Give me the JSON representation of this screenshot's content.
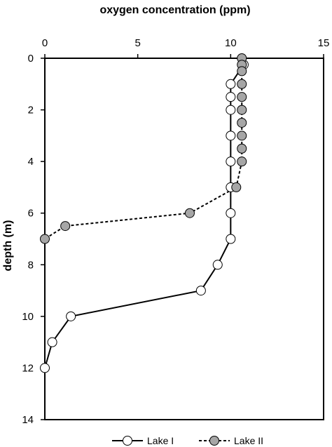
{
  "chart_data": {
    "type": "line",
    "title": "",
    "xlabel": "oxygen concentration (ppm)",
    "ylabel": "depth (m)",
    "x_axis_position": "top",
    "y_axis_inverted": true,
    "xlim": [
      0,
      15
    ],
    "ylim": [
      0,
      14
    ],
    "x_ticks": [
      0,
      5,
      10,
      15
    ],
    "y_ticks": [
      0,
      2,
      4,
      6,
      8,
      10,
      12,
      14
    ],
    "grid": false,
    "legend_position": "bottom",
    "series": [
      {
        "name": "Lake I",
        "line_style": "solid",
        "marker_fill": "#ffffff",
        "points": [
          {
            "x": 10.7,
            "y": 0.25
          },
          {
            "x": 10.0,
            "y": 1.0
          },
          {
            "x": 10.0,
            "y": 1.5
          },
          {
            "x": 10.0,
            "y": 2.0
          },
          {
            "x": 10.0,
            "y": 3.0
          },
          {
            "x": 10.0,
            "y": 4.0
          },
          {
            "x": 10.0,
            "y": 5.0
          },
          {
            "x": 10.0,
            "y": 6.0
          },
          {
            "x": 10.0,
            "y": 7.0
          },
          {
            "x": 9.3,
            "y": 8.0
          },
          {
            "x": 8.4,
            "y": 9.0
          },
          {
            "x": 1.4,
            "y": 10.0
          },
          {
            "x": 0.4,
            "y": 11.0
          },
          {
            "x": 0.0,
            "y": 12.0
          }
        ]
      },
      {
        "name": "Lake II",
        "line_style": "dashed",
        "marker_fill": "#a6a6a6",
        "points": [
          {
            "x": 10.6,
            "y": 0.0
          },
          {
            "x": 10.6,
            "y": 0.25
          },
          {
            "x": 10.6,
            "y": 0.5
          },
          {
            "x": 10.6,
            "y": 1.0
          },
          {
            "x": 10.6,
            "y": 1.5
          },
          {
            "x": 10.6,
            "y": 2.0
          },
          {
            "x": 10.6,
            "y": 2.5
          },
          {
            "x": 10.6,
            "y": 3.0
          },
          {
            "x": 10.6,
            "y": 3.5
          },
          {
            "x": 10.6,
            "y": 4.0
          },
          {
            "x": 10.3,
            "y": 5.0
          },
          {
            "x": 7.8,
            "y": 6.0
          },
          {
            "x": 1.1,
            "y": 6.5
          },
          {
            "x": 0.0,
            "y": 7.0
          }
        ]
      }
    ]
  }
}
